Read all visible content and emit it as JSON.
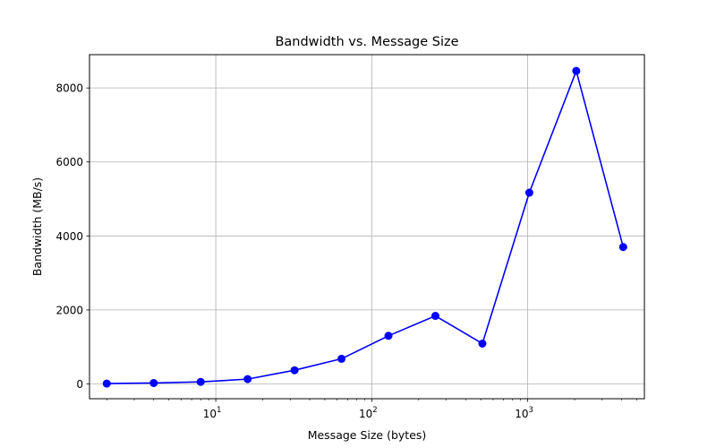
{
  "chart_data": {
    "type": "line",
    "title": "Bandwidth vs. Message Size",
    "xlabel": "Message Size (bytes)",
    "ylabel": "Bandwidth (MB/s)",
    "x_scale": "log",
    "xlim": [
      1.55,
      5600
    ],
    "ylim": [
      -400,
      8900
    ],
    "grid": true,
    "legend": "none",
    "color": "#0000ff",
    "x_ticks": [
      {
        "value": 10,
        "base": "10",
        "exp": "1"
      },
      {
        "value": 100,
        "base": "10",
        "exp": "2"
      },
      {
        "value": 1000,
        "base": "10",
        "exp": "3"
      }
    ],
    "y_ticks": [
      {
        "value": 0,
        "label": "0"
      },
      {
        "value": 2000,
        "label": "2000"
      },
      {
        "value": 4000,
        "label": "4000"
      },
      {
        "value": 6000,
        "label": "6000"
      },
      {
        "value": 8000,
        "label": "8000"
      }
    ],
    "series": [
      {
        "x": [
          2,
          4,
          8,
          16,
          32,
          64,
          128,
          256,
          512,
          1024,
          2048,
          4096
        ],
        "values": [
          10,
          25,
          55,
          130,
          370,
          680,
          1300,
          1840,
          1090,
          5170,
          8460,
          3700
        ]
      }
    ]
  }
}
